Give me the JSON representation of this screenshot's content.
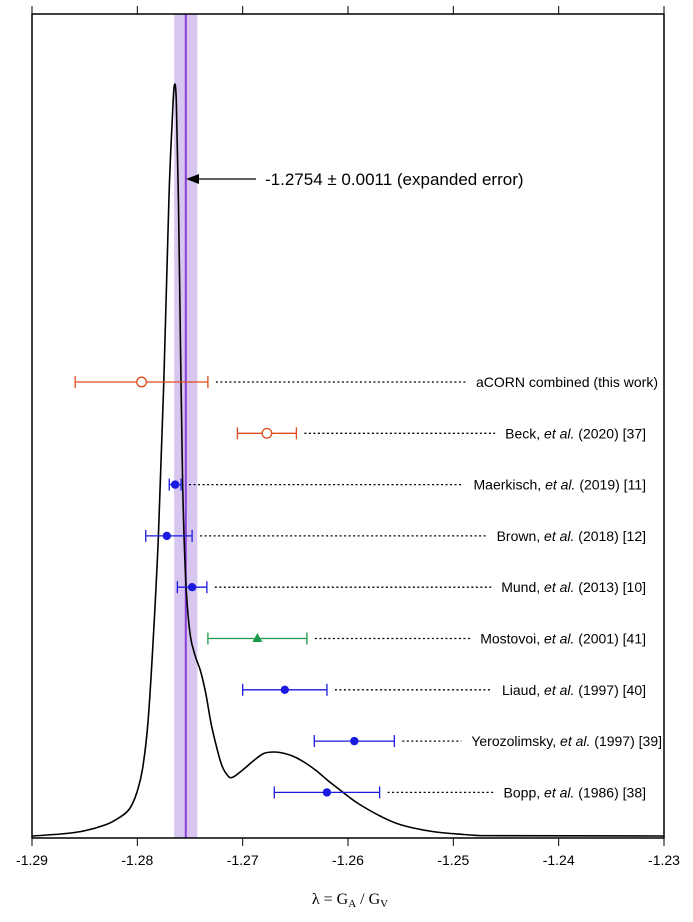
{
  "chart_data": {
    "type": "scatter",
    "title": "",
    "xlabel": "λ = G_A / G_V",
    "xlim": [
      -1.29,
      -1.23
    ],
    "x_ticks": [
      "-1.29",
      "-1.28",
      "-1.27",
      "-1.26",
      "-1.25",
      "-1.24",
      "-1.23"
    ],
    "band": {
      "center": -1.2754,
      "error": 0.0011,
      "color": "#d7c6f0",
      "line_color": "#8a3fd6"
    },
    "annotation": {
      "text": "-1.2754 ± 0.0011 (expanded error)"
    },
    "experiments": [
      {
        "author": "aCORN combined",
        "etal": "",
        "tail": " (this work)",
        "value": -1.2796,
        "err_low": 0.0063,
        "err_high": 0.0063,
        "marker": "open-circle",
        "color": "#e04b1a"
      },
      {
        "author": "Beck, ",
        "etal": "et al.",
        "tail": " (2020) [37]",
        "value": -1.2677,
        "err_low": 0.0028,
        "err_high": 0.0028,
        "marker": "open-circle",
        "color": "#e04b1a"
      },
      {
        "author": "Maerkisch, ",
        "etal": "et al.",
        "tail": " (2019) [11]",
        "value": -1.27641,
        "err_low": 0.00056,
        "err_high": 0.00056,
        "marker": "filled-circle",
        "color": "#1a1ae0"
      },
      {
        "author": "Brown, ",
        "etal": "et al.",
        "tail": " (2018) [12]",
        "value": -1.2772,
        "err_low": 0.002,
        "err_high": 0.0024,
        "marker": "filled-circle",
        "color": "#1a1ae0"
      },
      {
        "author": "Mund, ",
        "etal": "et al.",
        "tail": " (2013) [10]",
        "value": -1.2748,
        "err_low": 0.0014,
        "err_high": 0.0014,
        "marker": "filled-circle",
        "color": "#1a1ae0"
      },
      {
        "author": "Mostovoi, ",
        "etal": "et al.",
        "tail": " (2001) [41]",
        "value": -1.2686,
        "err_low": 0.0047,
        "err_high": 0.0047,
        "marker": "filled-triangle",
        "color": "#1a9a4a"
      },
      {
        "author": "Liaud, ",
        "etal": "et al.",
        "tail": " (1997) [40]",
        "value": -1.266,
        "err_low": 0.004,
        "err_high": 0.004,
        "marker": "filled-circle",
        "color": "#1a1ae0"
      },
      {
        "author": "Yerozolimsky, ",
        "etal": "et al.",
        "tail": " (1997) [39]",
        "value": -1.2594,
        "err_low": 0.0038,
        "err_high": 0.0038,
        "marker": "filled-circle",
        "color": "#1a1ae0"
      },
      {
        "author": "Bopp, ",
        "etal": "et al.",
        "tail": " (1986) [38]",
        "value": -1.262,
        "err_low": 0.005,
        "err_high": 0.005,
        "marker": "filled-circle",
        "color": "#1a1ae0"
      }
    ],
    "distribution": {
      "color": "#000000",
      "x": [
        -1.29,
        -1.287,
        -1.285,
        -1.283,
        -1.282,
        -1.281,
        -1.2805,
        -1.28,
        -1.2795,
        -1.279,
        -1.2785,
        -1.278,
        -1.2775,
        -1.277,
        -1.2767,
        -1.2765,
        -1.2763,
        -1.2761,
        -1.2759,
        -1.2757,
        -1.2754,
        -1.275,
        -1.2745,
        -1.274,
        -1.2735,
        -1.273,
        -1.2725,
        -1.272,
        -1.2715,
        -1.271,
        -1.27,
        -1.269,
        -1.268,
        -1.267,
        -1.266,
        -1.265,
        -1.264,
        -1.263,
        -1.262,
        -1.261,
        -1.26,
        -1.259,
        -1.257,
        -1.255,
        -1.252,
        -1.249,
        -1.2475
      ],
      "y": [
        0,
        0.003,
        0.007,
        0.015,
        0.022,
        0.032,
        0.042,
        0.06,
        0.09,
        0.15,
        0.26,
        0.4,
        0.6,
        0.85,
        0.95,
        1.0,
        0.98,
        0.85,
        0.65,
        0.47,
        0.34,
        0.27,
        0.24,
        0.22,
        0.19,
        0.15,
        0.12,
        0.095,
        0.082,
        0.078,
        0.088,
        0.1,
        0.11,
        0.112,
        0.11,
        0.105,
        0.097,
        0.087,
        0.075,
        0.064,
        0.053,
        0.043,
        0.027,
        0.015,
        0.006,
        0.002,
        0.0005
      ]
    }
  }
}
